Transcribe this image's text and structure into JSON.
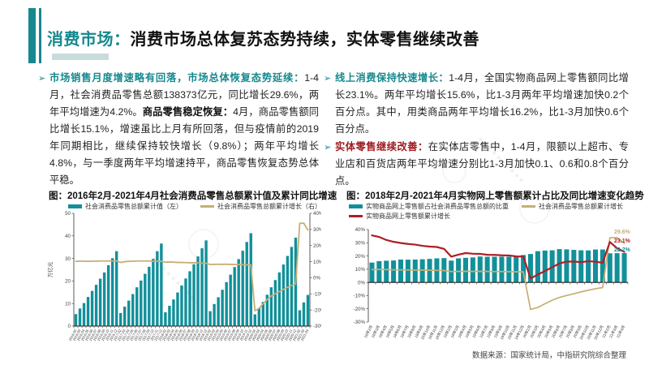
{
  "header": {
    "accent_label": "消费市场：",
    "title": "消费市场总体复苏态势持续，实体零售继续改善"
  },
  "columns": {
    "left": {
      "bullets": [
        {
          "segments": [
            {
              "t": "市场销售月度增速略有回落，市场总体恢复态势延续：",
              "s": "lead"
            },
            {
              "t": "1-4月，社会消费品零售总额138373亿元，同比增长29.6%，两年平均增速为4.2%。",
              "s": "normal"
            },
            {
              "t": "商品零售稳定恢复：",
              "s": "dark"
            },
            {
              "t": "4月，商品零售额同比增长15.1%，增速虽比上月有所回落，但与疫情前的2019年同期相比，继续保持较快增长（9.8%）；两年平均增长4.8%，与一季度两年平均增速持平，商品零售恢复态势总体平稳。",
              "s": "normal"
            }
          ]
        }
      ]
    },
    "right": {
      "bullets": [
        {
          "segments": [
            {
              "t": "线上消费保持快速增长：",
              "s": "lead"
            },
            {
              "t": "1-4月，全国实物商品网上零售额同比增长23.1%。两年平均增长15.6%，比1-3月两年平均增速加快0.2个百分点。其中，用类商品两年平均增长16.2%，比1-3月加快0.6个百分点。",
              "s": "normal"
            }
          ]
        },
        {
          "segments": [
            {
              "t": "实体零售继续改善：",
              "s": "red"
            },
            {
              "t": "在实体店零售中，1-4月，限额以上超市、专业店和百货店两年平均增速分别比1-3月加快0.1、0.6和0.8个百分点。",
              "s": "normal"
            }
          ]
        }
      ]
    }
  },
  "colors": {
    "teal": "#15898E",
    "bar_teal": "#12909A",
    "gold": "#C6AF76",
    "red": "#AE1E24",
    "dark_red": "#9E1B20"
  },
  "footer": {
    "source": "数据来源：国家统计局，中指研究院综合整理"
  },
  "chart_data": [
    {
      "type": "bar+line",
      "title": "图：2016年2月-2021年4月社会消费品零售总额累计值及累计同比增速",
      "legend": [
        {
          "label": "社会消费品零售总额累计值（左）",
          "color": "#12909A",
          "type": "bar"
        },
        {
          "label": "社会消费品零售总额累计增长（右）",
          "color": "#C6AF76",
          "type": "line"
        }
      ],
      "y_left": {
        "min": 0,
        "max": 50,
        "ticks": [
          0,
          10,
          20,
          30,
          40,
          50
        ],
        "title": "万亿元"
      },
      "y_right": {
        "min": -30,
        "max": 40,
        "ticks": [
          -30,
          -20,
          -10,
          0,
          10,
          20,
          30,
          40
        ],
        "unit": "%"
      },
      "x": [
        "2016-02",
        "2016-03",
        "2016-04",
        "2016-05",
        "2016-06",
        "2016-07",
        "2016-08",
        "2016-09",
        "2016-10",
        "2016-11",
        "2016-12",
        "2017-02",
        "2017-03",
        "2017-04",
        "2017-05",
        "2017-06",
        "2017-07",
        "2017-08",
        "2017-09",
        "2017-10",
        "2017-11",
        "2017-12",
        "2018-02",
        "2018-03",
        "2018-04",
        "2018-05",
        "2018-06",
        "2018-07",
        "2018-08",
        "2018-09",
        "2018-10",
        "2018-11",
        "2018-12",
        "2019-02",
        "2019-03",
        "2019-04",
        "2019-05",
        "2019-06",
        "2019-07",
        "2019-08",
        "2019-09",
        "2019-10",
        "2019-11",
        "2019-12",
        "2020-02",
        "2020-03",
        "2020-04",
        "2020-05",
        "2020-06",
        "2020-07",
        "2020-08",
        "2020-09",
        "2020-10",
        "2020-11",
        "2020-12",
        "2021-02",
        "2021-03",
        "2021-04"
      ],
      "series": [
        {
          "name": "社会消费品零售总额累计值",
          "type": "bar",
          "axis": "left",
          "color": "#12909A",
          "values": [
            5.3,
            7.8,
            10.2,
            12.9,
            15.6,
            18.3,
            21.0,
            23.8,
            27.0,
            30.1,
            33.2,
            5.8,
            8.6,
            11.3,
            14.2,
            17.2,
            20.2,
            23.2,
            26.3,
            29.8,
            33.2,
            36.6,
            6.1,
            9.0,
            11.8,
            14.9,
            18.0,
            21.1,
            24.3,
            27.4,
            30.9,
            34.5,
            38.0,
            6.6,
            9.8,
            12.8,
            16.1,
            19.5,
            22.8,
            26.2,
            29.7,
            33.4,
            37.3,
            41.2,
            5.2,
            7.9,
            10.7,
            13.9,
            17.2,
            20.4,
            23.8,
            27.3,
            31.1,
            35.1,
            39.2,
            7.0,
            10.5,
            13.8
          ]
        },
        {
          "name": "社会消费品零售总额累计增长",
          "type": "line",
          "axis": "right",
          "color": "#C6AF76",
          "width": 1.8,
          "values": [
            10.2,
            10.3,
            10.3,
            10.2,
            10.3,
            10.3,
            10.4,
            10.4,
            10.4,
            10.4,
            10.4,
            9.5,
            10.0,
            10.2,
            10.3,
            10.4,
            10.4,
            10.4,
            10.4,
            10.3,
            10.3,
            10.2,
            9.7,
            9.8,
            9.7,
            9.5,
            9.5,
            9.4,
            9.3,
            9.3,
            9.2,
            9.1,
            9.0,
            8.2,
            8.3,
            8.4,
            8.3,
            8.4,
            8.3,
            8.2,
            8.2,
            8.1,
            8.0,
            8.0,
            -20.5,
            -19.0,
            -16.2,
            -13.5,
            -11.4,
            -9.9,
            -8.6,
            -7.2,
            -5.9,
            -4.8,
            -3.9,
            33.8,
            33.9,
            29.6
          ]
        }
      ]
    },
    {
      "type": "bar+line",
      "title": "图：2018年2月-2021年4月实物网上零售额累计占比及同比增速变化趋势",
      "legend": [
        {
          "label": "实物商品网上零售额占社会消费品零售总额的比重",
          "color": "#12909A",
          "type": "bar"
        },
        {
          "label": "社会消费品零售总额累计增长",
          "color": "#C6AF76",
          "type": "line"
        },
        {
          "label": "实物商品网上零售额累计增长",
          "color": "#AE1E24",
          "type": "line"
        }
      ],
      "y_left": {
        "min": -30,
        "max": 40,
        "ticks": [
          -30,
          -20,
          -10,
          0,
          10,
          20,
          30,
          40
        ],
        "unit": "%"
      },
      "x": [
        "18年2月",
        "18年3月",
        "18年4月",
        "18年5月",
        "18年6月",
        "18年7月",
        "18年8月",
        "18年9月",
        "18年10月",
        "18年11月",
        "18年12月",
        "19年2月",
        "19年3月",
        "19年4月",
        "19年5月",
        "19年6月",
        "19年7月",
        "19年8月",
        "19年9月",
        "19年10月",
        "19年11月",
        "19年12月",
        "20年2月",
        "20年3月",
        "20年4月",
        "20年5月",
        "20年6月",
        "20年7月",
        "20年8月",
        "20年9月",
        "20年10月",
        "20年11月",
        "20年12月",
        "21年2月",
        "21年3月",
        "21年4月"
      ],
      "series": [
        {
          "name": "实物商品网上零售额占社会消费品零售总额的比重",
          "type": "bar",
          "axis": "left",
          "color": "#12909A",
          "values": [
            15.0,
            16.1,
            16.4,
            16.6,
            17.3,
            17.2,
            17.3,
            17.5,
            17.8,
            18.2,
            18.4,
            16.5,
            18.2,
            18.6,
            18.9,
            19.6,
            19.4,
            19.4,
            19.5,
            19.5,
            20.0,
            20.7,
            21.5,
            23.6,
            24.1,
            24.3,
            25.2,
            25.0,
            24.6,
            24.3,
            24.2,
            24.9,
            24.9,
            22.0,
            22.1,
            22.2
          ]
        },
        {
          "name": "社会消费品零售总额累计增长",
          "type": "line",
          "axis": "left",
          "color": "#C6AF76",
          "width": 1.7,
          "values": [
            9.7,
            9.8,
            9.7,
            9.5,
            9.5,
            9.4,
            9.3,
            9.3,
            9.2,
            9.1,
            9.0,
            8.2,
            8.3,
            8.4,
            8.3,
            8.4,
            8.3,
            8.2,
            8.2,
            8.1,
            8.0,
            8.0,
            -20.5,
            -19.0,
            -16.2,
            -13.5,
            -11.4,
            -9.9,
            -8.6,
            -7.2,
            -5.9,
            -4.8,
            -3.9,
            33.8,
            33.9,
            29.6
          ]
        },
        {
          "name": "实物商品网上零售额累计增长",
          "type": "line",
          "axis": "left",
          "color": "#AE1E24",
          "width": 2.2,
          "values": [
            35.6,
            34.4,
            32.1,
            30.7,
            29.8,
            29.1,
            28.6,
            27.7,
            27.1,
            26.8,
            25.4,
            19.5,
            21.0,
            22.2,
            21.7,
            21.6,
            20.9,
            20.8,
            20.5,
            20.4,
            19.7,
            19.5,
            3.0,
            5.9,
            8.6,
            11.5,
            14.3,
            15.7,
            15.8,
            15.3,
            16.0,
            15.7,
            14.8,
            30.6,
            25.8,
            23.1
          ]
        }
      ],
      "end_labels": [
        {
          "text": "29.6%",
          "color": "#C6AF76"
        },
        {
          "text": "23.1%",
          "color": "#AE1E24"
        },
        {
          "text": "22.2%",
          "color": "#12909A"
        }
      ]
    }
  ]
}
